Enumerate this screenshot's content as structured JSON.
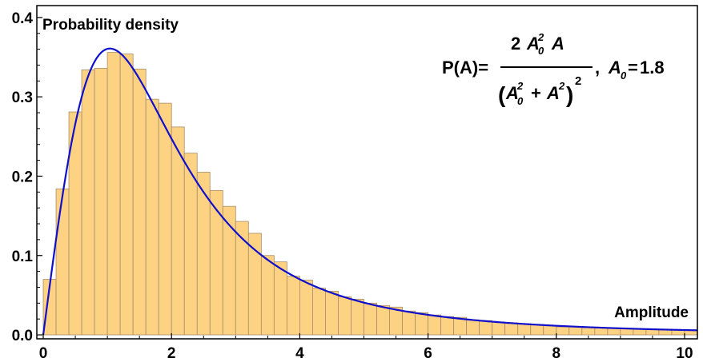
{
  "chart_data": {
    "type": "bar",
    "xlabel": "Amplitude",
    "ylabel": "Probability density",
    "xlim": [
      -0.1,
      10.2
    ],
    "ylim": [
      -0.005,
      0.415
    ],
    "x_ticks": [
      0,
      2,
      4,
      6,
      8,
      10
    ],
    "x_tick_labels": [
      "0",
      "2",
      "4",
      "6",
      "8",
      "10"
    ],
    "y_ticks": [
      0.0,
      0.1,
      0.2,
      0.3,
      0.4
    ],
    "y_tick_labels": [
      "0.0",
      "0.1",
      "0.2",
      "0.3",
      "0.4"
    ],
    "bin_width": 0.2,
    "bin_starts": [
      0.0,
      0.2,
      0.4,
      0.6,
      0.8,
      1.0,
      1.2,
      1.4,
      1.6,
      1.8,
      2.0,
      2.2,
      2.4,
      2.6,
      2.8,
      3.0,
      3.2,
      3.4,
      3.6,
      3.8,
      4.0,
      4.2,
      4.4,
      4.6,
      4.8,
      5.0,
      5.2,
      5.4,
      5.6,
      5.8,
      6.0,
      6.2,
      6.4,
      6.6,
      6.8,
      7.0,
      7.2,
      7.4,
      7.6,
      7.8,
      8.0,
      8.2,
      8.4,
      8.6,
      8.8,
      9.0,
      9.2,
      9.4,
      9.6,
      9.8,
      10.0
    ],
    "histogram_values": [
      0.07,
      0.184,
      0.281,
      0.334,
      0.336,
      0.356,
      0.354,
      0.335,
      0.297,
      0.292,
      0.262,
      0.229,
      0.205,
      0.182,
      0.162,
      0.143,
      0.128,
      0.1,
      0.092,
      0.074,
      0.069,
      0.059,
      0.055,
      0.048,
      0.045,
      0.04,
      0.037,
      0.035,
      0.03,
      0.028,
      0.025,
      0.023,
      0.022,
      0.019,
      0.018,
      0.016,
      0.015,
      0.014,
      0.013,
      0.012,
      0.01,
      0.01,
      0.009,
      0.009,
      0.008,
      0.008,
      0.007,
      0.007,
      0.006,
      0.006,
      0.006
    ],
    "curve": {
      "formula": "P(A) = 2 A0^2 A / (A0^2 + A^2)^2",
      "A0": 1.8
    },
    "colors": {
      "bar_fill": "#FDD283",
      "bar_stroke": "#A88D6A",
      "curve": "#1010CC",
      "frame": "#000000"
    },
    "grid": false,
    "legend": "none",
    "annotation": {
      "prefix": "P(A)=",
      "num_lead": "2",
      "var_A": "A",
      "sub_0": "0",
      "sup_2": "2",
      "plus": "+",
      "lparen": "(",
      "rparen": ")",
      "sep": ", ",
      "eq": "=",
      "a0_value": "1.8"
    }
  }
}
